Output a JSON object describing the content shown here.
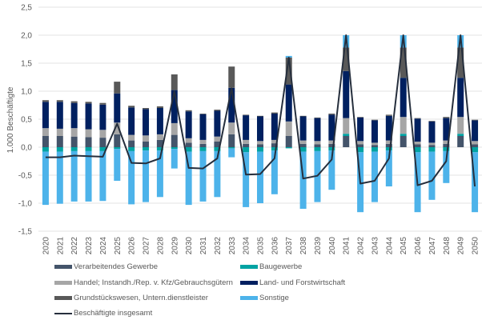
{
  "chart_data": {
    "type": "bar",
    "stacked": true,
    "title": "",
    "xlabel": "",
    "ylabel": "1.000 Beschäftigte",
    "ylim": [
      -1.5,
      2.5
    ],
    "yticks": [
      2.5,
      2.0,
      1.5,
      1.0,
      0.5,
      0.0,
      -0.5,
      -1.0,
      -1.5
    ],
    "ytick_labels": [
      "2,5",
      "2,0",
      "1,5",
      "1,0",
      "0,5",
      "0,0",
      "-0,5",
      "-1,0",
      "-1,5"
    ],
    "grid": true,
    "legend_position": "bottom",
    "categories": [
      "2020",
      "2021",
      "2022",
      "2023",
      "2024",
      "2025",
      "2026",
      "2027",
      "2028",
      "2029",
      "2030",
      "2031",
      "2032",
      "2033",
      "2034",
      "2035",
      "2036",
      "2037",
      "2038",
      "2039",
      "2040",
      "2041",
      "2042",
      "2043",
      "2044",
      "2045",
      "2046",
      "2047",
      "2048",
      "2049",
      "2050"
    ],
    "series": [
      {
        "name": "Verarbeitendes Gewerbe",
        "color": "#44546a",
        "values": [
          0.2,
          0.2,
          0.19,
          0.18,
          0.17,
          0.23,
          0.12,
          0.1,
          0.13,
          0.22,
          0.08,
          0.06,
          0.1,
          0.23,
          0.06,
          0.05,
          0.07,
          0.2,
          0.06,
          0.05,
          0.06,
          0.2,
          0.05,
          0.04,
          0.06,
          0.2,
          0.05,
          0.04,
          0.06,
          0.2,
          0.05
        ]
      },
      {
        "name": "Baugewerbe",
        "color": "#00a3a3",
        "values": [
          -0.08,
          -0.08,
          -0.07,
          -0.07,
          -0.07,
          -0.03,
          -0.07,
          -0.06,
          -0.06,
          -0.03,
          -0.08,
          -0.07,
          -0.07,
          -0.02,
          -0.09,
          -0.08,
          -0.06,
          -0.02,
          -0.08,
          -0.07,
          -0.06,
          0.04,
          -0.09,
          -0.08,
          -0.06,
          0.04,
          -0.09,
          -0.08,
          -0.07,
          0.04,
          -0.09
        ]
      },
      {
        "name": "Handel; Instandh./Rep. v. Kfz/Gebrauchsgütern",
        "color": "#a6a6a6",
        "values": [
          0.14,
          0.13,
          0.15,
          0.14,
          0.14,
          0.21,
          0.1,
          0.11,
          0.1,
          0.21,
          0.08,
          0.07,
          0.09,
          0.21,
          0.07,
          0.06,
          0.06,
          0.26,
          0.06,
          0.06,
          0.06,
          0.28,
          0.06,
          0.04,
          0.06,
          0.3,
          0.05,
          0.04,
          0.06,
          0.3,
          0.06
        ]
      },
      {
        "name": "Land- und Forstwirtschaft",
        "color": "#002060",
        "values": [
          0.47,
          0.48,
          0.45,
          0.46,
          0.45,
          0.52,
          0.49,
          0.47,
          0.47,
          0.59,
          0.48,
          0.46,
          0.46,
          0.62,
          0.44,
          0.44,
          0.47,
          0.66,
          0.43,
          0.41,
          0.46,
          0.84,
          0.42,
          0.4,
          0.44,
          0.7,
          0.41,
          0.38,
          0.4,
          0.7,
          0.37
        ]
      },
      {
        "name": "Grundstückswesen, Untern.dienstleister",
        "color": "#595959",
        "values": [
          0.03,
          0.03,
          0.03,
          0.03,
          0.03,
          0.21,
          0.03,
          0.02,
          0.03,
          0.28,
          0.02,
          0.01,
          0.02,
          0.38,
          0.01,
          0.01,
          0.02,
          0.48,
          0.01,
          0.01,
          0.02,
          0.42,
          0.01,
          0.01,
          0.02,
          0.54,
          0.01,
          0.01,
          0.02,
          0.54,
          0.01
        ]
      },
      {
        "name": "Sonstige",
        "color": "#4db3ea",
        "values": [
          -0.95,
          -0.93,
          -0.9,
          -0.9,
          -0.89,
          -0.57,
          -0.95,
          -0.92,
          -0.83,
          -0.35,
          -0.95,
          -0.9,
          -0.82,
          -0.16,
          -0.98,
          -0.92,
          -0.78,
          0.03,
          -1.02,
          -0.91,
          -0.7,
          0.22,
          -1.07,
          -0.9,
          -0.64,
          0.22,
          -1.07,
          -0.86,
          -0.57,
          0.22,
          -1.07
        ]
      }
    ],
    "line": {
      "name": "Beschäftigte insgesamt",
      "color": "#262f3d",
      "values": [
        -0.18,
        -0.18,
        -0.15,
        -0.16,
        -0.17,
        0.42,
        -0.28,
        -0.29,
        -0.2,
        1.0,
        -0.37,
        -0.38,
        -0.2,
        1.05,
        -0.49,
        -0.48,
        -0.2,
        1.6,
        -0.56,
        -0.51,
        -0.22,
        2.0,
        -0.65,
        -0.6,
        -0.2,
        2.0,
        -0.68,
        -0.6,
        -0.25,
        2.0,
        -0.7
      ]
    }
  },
  "legend": {
    "items": [
      {
        "label": "Verarbeitendes Gewerbe",
        "color": "#44546a",
        "kind": "bar"
      },
      {
        "label": "Baugewerbe",
        "color": "#00a3a3",
        "kind": "bar"
      },
      {
        "label": "Handel; Instandh./Rep. v. Kfz/Gebrauchsgütern",
        "color": "#a6a6a6",
        "kind": "bar"
      },
      {
        "label": "Land- und Forstwirtschaft",
        "color": "#002060",
        "kind": "bar"
      },
      {
        "label": "Grundstückswesen, Untern.dienstleister",
        "color": "#595959",
        "kind": "bar"
      },
      {
        "label": "Sonstige",
        "color": "#4db3ea",
        "kind": "bar"
      },
      {
        "label": "Beschäftigte insgesamt",
        "color": "#262f3d",
        "kind": "line"
      }
    ]
  }
}
